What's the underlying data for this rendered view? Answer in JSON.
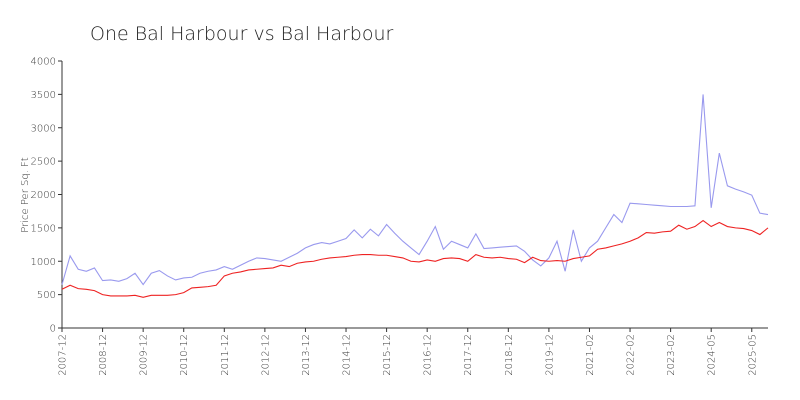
{
  "chart_data": {
    "type": "line",
    "title": "One Bal Harbour vs Bal Harbour",
    "y_label": "Price Per Sq. Ft",
    "categories": [
      "2007-12",
      null,
      null,
      null,
      null,
      "2008-12",
      null,
      null,
      null,
      null,
      "2009-12",
      null,
      null,
      null,
      null,
      "2010-12",
      null,
      null,
      null,
      null,
      "2011-12",
      null,
      null,
      null,
      null,
      "2012-12",
      null,
      null,
      null,
      null,
      "2013-12",
      null,
      null,
      null,
      null,
      "2014-12",
      null,
      null,
      null,
      null,
      "2015-12",
      null,
      null,
      null,
      null,
      "2016-12",
      null,
      null,
      null,
      null,
      "2017-12",
      null,
      null,
      null,
      null,
      "2018-12",
      null,
      null,
      null,
      null,
      "2019-12",
      null,
      null,
      null,
      null,
      "2021-02",
      null,
      null,
      null,
      null,
      "2022-02",
      null,
      null,
      null,
      null,
      "2023-02",
      null,
      null,
      null,
      null,
      "2024-05",
      null,
      null,
      null,
      null,
      "2025-05",
      null,
      null
    ],
    "series": [
      {
        "color": "#9999ee",
        "values": [
          650,
          1080,
          880,
          850,
          900,
          710,
          720,
          700,
          740,
          820,
          650,
          820,
          860,
          780,
          720,
          750,
          760,
          820,
          850,
          870,
          920,
          880,
          940,
          1000,
          1050,
          1040,
          1020,
          1000,
          1060,
          1120,
          1200,
          1250,
          1280,
          1260,
          1300,
          1340,
          1470,
          1350,
          1480,
          1380,
          1550,
          1420,
          1300,
          1200,
          1100,
          1300,
          1520,
          1180,
          1300,
          1250,
          1200,
          1410,
          1190,
          1200,
          1210,
          1220,
          1230,
          1150,
          1020,
          930,
          1050,
          1300,
          850,
          1470,
          1000,
          1200,
          1300,
          1500,
          1700,
          1580,
          1870,
          1860,
          1850,
          1840,
          1830,
          1820,
          1820,
          1820,
          1830,
          3500,
          1800,
          2620,
          2130,
          2080,
          2040,
          1990,
          1720,
          1700
        ]
      },
      {
        "color": "#ee2222",
        "values": [
          580,
          640,
          590,
          580,
          560,
          500,
          480,
          480,
          480,
          490,
          460,
          490,
          490,
          490,
          500,
          530,
          600,
          610,
          620,
          640,
          780,
          820,
          840,
          870,
          880,
          890,
          900,
          940,
          920,
          970,
          990,
          1000,
          1030,
          1050,
          1060,
          1070,
          1090,
          1100,
          1100,
          1090,
          1090,
          1070,
          1050,
          1000,
          990,
          1020,
          1000,
          1040,
          1050,
          1040,
          1000,
          1100,
          1060,
          1050,
          1060,
          1040,
          1030,
          980,
          1060,
          1010,
          1000,
          1010,
          1000,
          1040,
          1060,
          1080,
          1180,
          1200,
          1230,
          1260,
          1300,
          1350,
          1430,
          1420,
          1440,
          1450,
          1540,
          1480,
          1520,
          1610,
          1520,
          1580,
          1520,
          1500,
          1490,
          1460,
          1400,
          1500
        ]
      }
    ],
    "ylim": [
      0,
      4000
    ],
    "yticks": [
      0,
      500,
      1000,
      1500,
      2000,
      2500,
      3000,
      3500,
      4000
    ]
  }
}
